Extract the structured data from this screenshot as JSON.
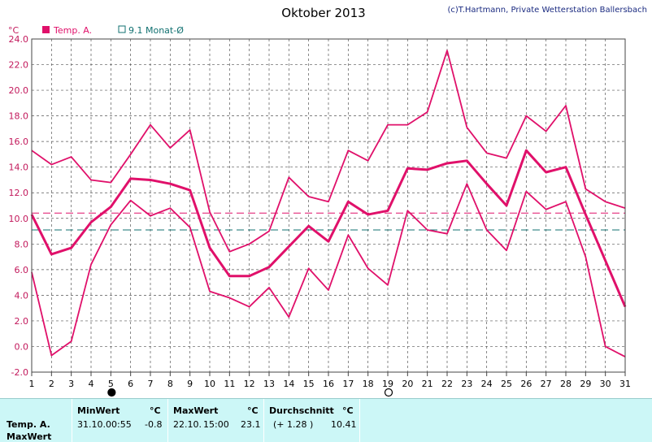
{
  "chart_data": {
    "type": "line",
    "title": "Oktober 2013",
    "credit": "(c)T.Hartmann, Private Wetterstation Ballersbach",
    "ylabel": "°C",
    "ylim": [
      -2.0,
      24.0
    ],
    "yticks": [
      "24.0",
      "22.0",
      "20.0",
      "18.0",
      "16.0",
      "14.0",
      "12.0",
      "10.0",
      "8.0",
      "6.0",
      "4.0",
      "2.0",
      "0.0",
      "-2.0"
    ],
    "x": [
      1,
      2,
      3,
      4,
      5,
      6,
      7,
      8,
      9,
      10,
      11,
      12,
      13,
      14,
      15,
      16,
      17,
      18,
      19,
      20,
      21,
      22,
      23,
      24,
      25,
      26,
      27,
      28,
      29,
      30,
      31
    ],
    "grid": true,
    "legend": [
      {
        "label": "Temp. A.",
        "color": "#e0106a"
      },
      {
        "label": "9.1 Monat-Ø",
        "color": "#107070"
      }
    ],
    "series": [
      {
        "role": "max",
        "color": "#e0106a",
        "values": [
          15.3,
          14.2,
          14.8,
          13.0,
          12.8,
          15.0,
          17.3,
          15.5,
          16.9,
          10.5,
          7.4,
          8.0,
          9.0,
          13.2,
          11.7,
          11.3,
          15.3,
          14.5,
          17.3,
          17.3,
          18.3,
          23.1,
          17.1,
          15.1,
          14.7,
          18.0,
          16.8,
          18.8,
          12.3,
          11.3,
          10.8
        ]
      },
      {
        "role": "mean",
        "color": "#e0106a",
        "values": [
          10.3,
          7.2,
          7.7,
          9.7,
          10.9,
          13.1,
          13.0,
          12.7,
          12.2,
          7.7,
          5.5,
          5.5,
          6.2,
          7.8,
          9.4,
          8.2,
          11.3,
          10.3,
          10.6,
          13.9,
          13.8,
          14.3,
          14.5,
          12.7,
          11.0,
          15.3,
          13.6,
          14.0,
          10.3,
          6.7,
          3.1
        ]
      },
      {
        "role": "min",
        "color": "#e0106a",
        "values": [
          5.8,
          -0.7,
          0.4,
          6.4,
          9.5,
          11.4,
          10.2,
          10.8,
          9.3,
          4.3,
          3.8,
          3.1,
          4.6,
          2.3,
          6.1,
          4.4,
          8.7,
          6.1,
          4.8,
          10.6,
          9.1,
          8.8,
          12.7,
          9.1,
          7.5,
          12.1,
          10.7,
          11.3,
          7.0,
          0.0,
          -0.8
        ]
      }
    ],
    "reference_lines": [
      {
        "value": 10.41,
        "color": "#e0106a"
      },
      {
        "value": 9.1,
        "color": "#107070"
      }
    ],
    "moon_markers": [
      {
        "day": 5,
        "phase": "new"
      },
      {
        "day": 19,
        "phase": "full"
      }
    ]
  },
  "summary": {
    "row_label": "Temp. A.",
    "row_label2": "MaxWert",
    "min_header": "MinWert",
    "max_header": "MaxWert",
    "avg_header": "Durchschnitt",
    "unit": "°C",
    "min_date": "31.10.",
    "min_time": "00:55",
    "min_value": "-0.8",
    "max_date": "22.10.",
    "max_time": "15:00",
    "max_value": "23.1",
    "avg_delta": "(+ 1.28 )",
    "avg_value": "10.41"
  }
}
